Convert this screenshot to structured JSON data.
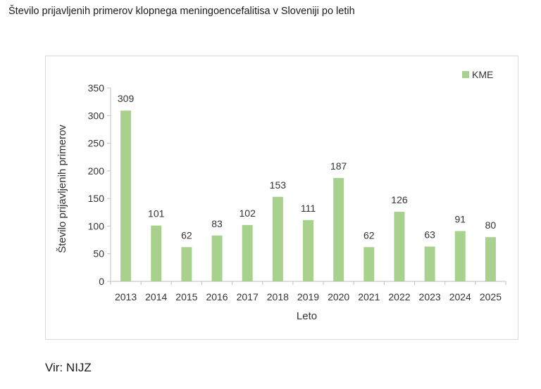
{
  "page": {
    "title": "Število prijavljenih primerov klopnega meningoencefalitisa v Sloveniji po letih",
    "source": "Vir: NIJZ"
  },
  "colors": {
    "bar": "#a9d18e",
    "axis": "#bfbfbf",
    "text": "#333333"
  },
  "chart_data": {
    "type": "bar",
    "categories": [
      "2013",
      "2014",
      "2015",
      "2016",
      "2017",
      "2018",
      "2019",
      "2020",
      "2021",
      "2022",
      "2023",
      "2024",
      "2025"
    ],
    "series": [
      {
        "name": "KME",
        "values": [
          309,
          101,
          62,
          83,
          102,
          153,
          111,
          187,
          62,
          126,
          63,
          91,
          80
        ]
      }
    ],
    "xlabel": "Leto",
    "ylabel": "Število prijavljenih primerov",
    "ylim": [
      0,
      350
    ],
    "yticks": [
      0,
      50,
      100,
      150,
      200,
      250,
      300,
      350
    ],
    "grid": false,
    "legend": "top-right",
    "data_labels": true
  }
}
